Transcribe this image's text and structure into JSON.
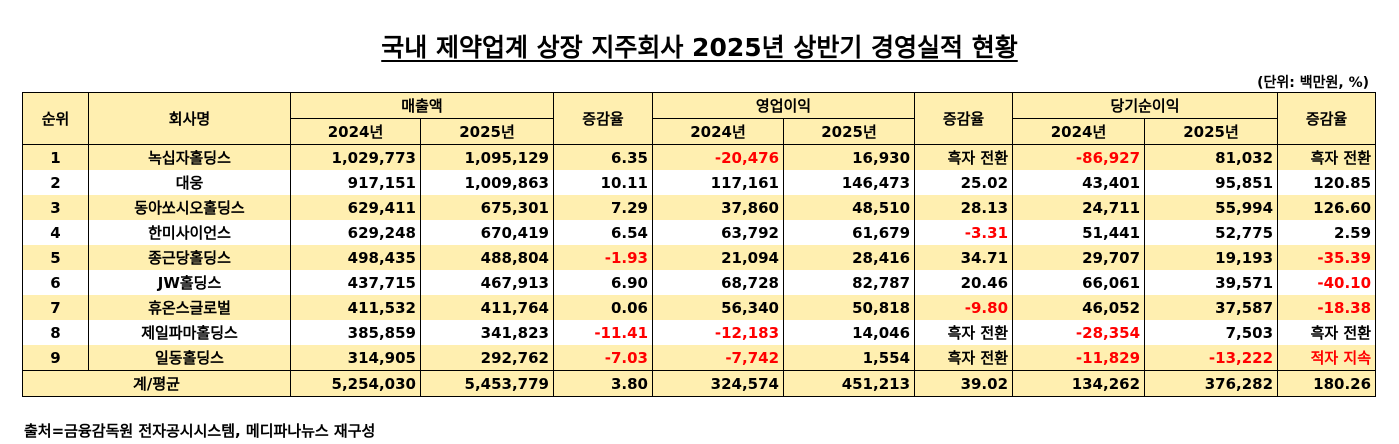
{
  "title": "국내 제약업계 상장 지주회사 2025년 상반기 경영실적 현황",
  "unit_note": "(단위: 백만원, %)",
  "stripe_color": "#ffefb0",
  "negative_color": "#ff0000",
  "table": {
    "header_top": [
      "순위",
      "회사명",
      "매출액",
      "증감율",
      "영업이익",
      "증감율",
      "당기순이익",
      "증감율"
    ],
    "header_sub": [
      "2024년",
      "2025년",
      "2024년",
      "2025년",
      "2024년",
      "2025년"
    ],
    "rows": [
      {
        "cells": [
          "1",
          "녹십자홀딩스",
          "1,029,773",
          "1,095,129",
          "6.35",
          "-20,476",
          "16,930",
          "흑자 전환",
          "-86,927",
          "81,032",
          "흑자 전환"
        ],
        "red": [
          5,
          8
        ]
      },
      {
        "cells": [
          "2",
          "대웅",
          "917,151",
          "1,009,863",
          "10.11",
          "117,161",
          "146,473",
          "25.02",
          "43,401",
          "95,851",
          "120.85"
        ],
        "red": []
      },
      {
        "cells": [
          "3",
          "동아쏘시오홀딩스",
          "629,411",
          "675,301",
          "7.29",
          "37,860",
          "48,510",
          "28.13",
          "24,711",
          "55,994",
          "126.60"
        ],
        "red": []
      },
      {
        "cells": [
          "4",
          "한미사이언스",
          "629,248",
          "670,419",
          "6.54",
          "63,792",
          "61,679",
          "-3.31",
          "51,441",
          "52,775",
          "2.59"
        ],
        "red": [
          7
        ]
      },
      {
        "cells": [
          "5",
          "종근당홀딩스",
          "498,435",
          "488,804",
          "-1.93",
          "21,094",
          "28,416",
          "34.71",
          "29,707",
          "19,193",
          "-35.39"
        ],
        "red": [
          4,
          10
        ]
      },
      {
        "cells": [
          "6",
          "JW홀딩스",
          "437,715",
          "467,913",
          "6.90",
          "68,728",
          "82,787",
          "20.46",
          "66,061",
          "39,571",
          "-40.10"
        ],
        "red": [
          10
        ]
      },
      {
        "cells": [
          "7",
          "휴온스글로벌",
          "411,532",
          "411,764",
          "0.06",
          "56,340",
          "50,818",
          "-9.80",
          "46,052",
          "37,587",
          "-18.38"
        ],
        "red": [
          7,
          10
        ]
      },
      {
        "cells": [
          "8",
          "제일파마홀딩스",
          "385,859",
          "341,823",
          "-11.41",
          "-12,183",
          "14,046",
          "흑자 전환",
          "-28,354",
          "7,503",
          "흑자 전환"
        ],
        "red": [
          4,
          5,
          8
        ]
      },
      {
        "cells": [
          "9",
          "일동홀딩스",
          "314,905",
          "292,762",
          "-7.03",
          "-7,742",
          "1,554",
          "흑자 전환",
          "-11,829",
          "-13,222",
          "적자 지속"
        ],
        "red": [
          4,
          5,
          8,
          9,
          10
        ]
      }
    ],
    "total": [
      "계/평균",
      "5,254,030",
      "5,453,779",
      "3.80",
      "324,574",
      "451,213",
      "39.02",
      "134,262",
      "376,282",
      "180.26"
    ]
  },
  "source": "출처=금융감독원 전자공시시스템, 메디파나뉴스 재구성"
}
